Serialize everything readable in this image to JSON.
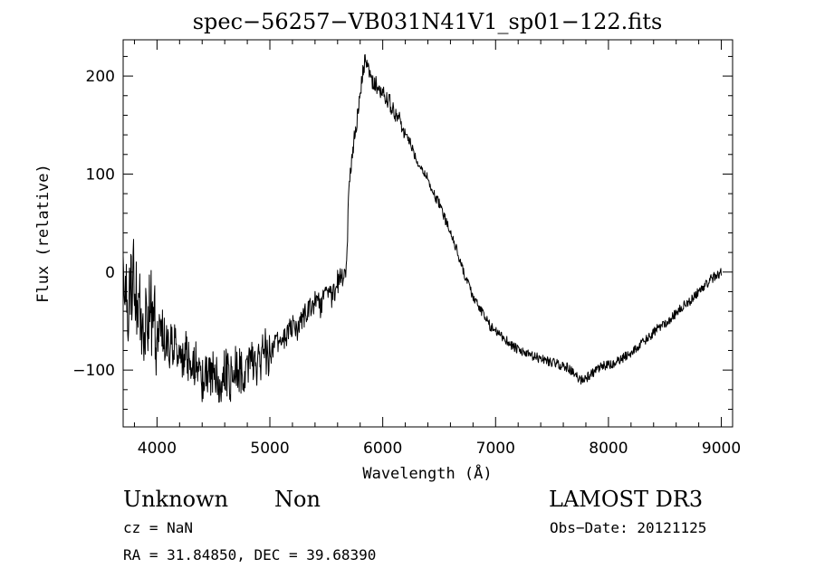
{
  "chart_data": {
    "type": "line",
    "title": "spec−56257−VB031N41V1_sp01−122.fits",
    "xlabel": "Wavelength (Å)",
    "ylabel": "Flux (relative)",
    "xlim": [
      3700,
      9100
    ],
    "ylim": [
      -158,
      237
    ],
    "xticks": [
      4000,
      5000,
      6000,
      7000,
      8000,
      9000
    ],
    "xtick_labels": [
      "4000",
      "5000",
      "6000",
      "7000",
      "8000",
      "9000"
    ],
    "yticks": [
      -100,
      0,
      100,
      200
    ],
    "ytick_labels": [
      "−100",
      "0",
      "100",
      "200"
    ],
    "grid": false,
    "legend": "none",
    "line_color": "#000000",
    "series": [
      {
        "x": [
          3700,
          3750,
          3800,
          3850,
          3900,
          3950,
          4000,
          4050,
          4100,
          4150,
          4200,
          4250,
          4300,
          4350,
          4400,
          4450,
          4500,
          4550,
          4600,
          4650,
          4700,
          4750,
          4800,
          4850,
          4900,
          4950,
          5000,
          5050,
          5100,
          5150,
          5200,
          5250,
          5300,
          5350,
          5400,
          5450,
          5500,
          5550,
          5600,
          5650,
          5680,
          5700,
          5720,
          5750,
          5780,
          5800,
          5820,
          5840,
          5860,
          5880,
          5900,
          5950,
          6000,
          6050,
          6100,
          6150,
          6200,
          6250,
          6300,
          6350,
          6400,
          6450,
          6500,
          6550,
          6600,
          6650,
          6700,
          6750,
          6800,
          6850,
          6900,
          6950,
          7000,
          7050,
          7100,
          7150,
          7200,
          7250,
          7300,
          7350,
          7400,
          7450,
          7500,
          7550,
          7600,
          7650,
          7700,
          7750,
          7800,
          7850,
          7900,
          7950,
          8000,
          8050,
          8100,
          8150,
          8200,
          8250,
          8300,
          8350,
          8400,
          8450,
          8500,
          8550,
          8600,
          8650,
          8700,
          8750,
          8800,
          8850,
          8900,
          8950,
          9000
        ],
        "y": [
          20,
          -30,
          0,
          -50,
          -60,
          -40,
          -70,
          -60,
          -80,
          -70,
          -90,
          -80,
          -100,
          -90,
          -110,
          -100,
          -105,
          -115,
          -100,
          -110,
          -95,
          -105,
          -100,
          -90,
          -95,
          -80,
          -85,
          -75,
          -70,
          -65,
          -55,
          -60,
          -45,
          -40,
          -30,
          -35,
          -20,
          -25,
          -10,
          -5,
          10,
          90,
          110,
          140,
          160,
          180,
          200,
          215,
          210,
          205,
          195,
          190,
          185,
          175,
          165,
          155,
          140,
          130,
          115,
          105,
          95,
          80,
          70,
          55,
          40,
          25,
          5,
          -10,
          -25,
          -35,
          -45,
          -55,
          -60,
          -65,
          -70,
          -75,
          -80,
          -82,
          -85,
          -87,
          -88,
          -90,
          -92,
          -94,
          -96,
          -98,
          -105,
          -110,
          -108,
          -104,
          -100,
          -96,
          -95,
          -94,
          -90,
          -86,
          -82,
          -78,
          -72,
          -68,
          -62,
          -56,
          -52,
          -48,
          -42,
          -36,
          -32,
          -26,
          -20,
          -14,
          -8,
          -4,
          0
        ]
      }
    ]
  },
  "annotations": {
    "object_class": "Unknown",
    "subclass": "Non",
    "survey": "LAMOST DR3",
    "redshift_text": "cz = NaN",
    "obs_date_text": "Obs−Date: 20121125",
    "coords_text": "RA =  31.84850, DEC =  39.68390"
  }
}
